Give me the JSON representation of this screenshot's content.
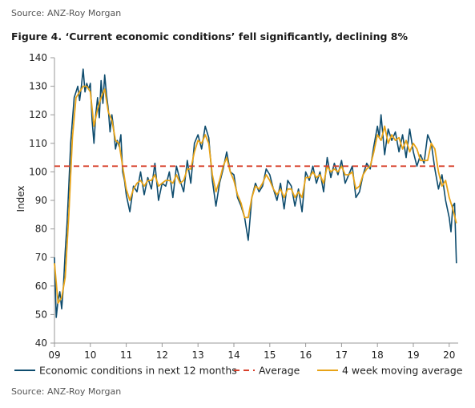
{
  "header": {
    "source_top": "Source: ANZ-Roy Morgan",
    "title": "Figure 4. ‘Current economic conditions’ fell significantly, declining 8%"
  },
  "footer": {
    "source_bottom": "Source: ANZ-Roy Morgan"
  },
  "colors": {
    "series_main": "#0e4c6e",
    "average": "#d8402b",
    "moving_avg": "#e8a317",
    "axis": "#999999"
  },
  "chart_data": {
    "type": "line",
    "title": "",
    "xlabel": "",
    "ylabel": "Index",
    "ylim": [
      40,
      140
    ],
    "xlim": [
      9,
      20.25
    ],
    "y_ticks": [
      40,
      50,
      60,
      70,
      80,
      90,
      100,
      110,
      120,
      130,
      140
    ],
    "x_ticks": [
      9,
      10,
      11,
      12,
      13,
      14,
      15,
      16,
      17,
      18,
      19,
      20
    ],
    "x_tick_labels": [
      "09",
      "10",
      "11",
      "12",
      "13",
      "14",
      "15",
      "16",
      "17",
      "18",
      "19",
      "20"
    ],
    "grid": false,
    "legend_position": "bottom",
    "average": 102,
    "series": [
      {
        "name": "Economic conditions in next 12 months",
        "style": "solid",
        "x": [
          9.0,
          9.05,
          9.1,
          9.15,
          9.2,
          9.25,
          9.3,
          9.35,
          9.4,
          9.45,
          9.5,
          9.55,
          9.6,
          9.65,
          9.7,
          9.75,
          9.8,
          9.85,
          9.9,
          9.95,
          10.0,
          10.05,
          10.1,
          10.15,
          10.2,
          10.25,
          10.3,
          10.35,
          10.4,
          10.45,
          10.5,
          10.55,
          10.6,
          10.65,
          10.7,
          10.75,
          10.8,
          10.85,
          10.9,
          10.95,
          11.0,
          11.1,
          11.2,
          11.3,
          11.4,
          11.5,
          11.6,
          11.7,
          11.8,
          11.9,
          12.0,
          12.1,
          12.2,
          12.3,
          12.4,
          12.5,
          12.6,
          12.7,
          12.8,
          12.9,
          13.0,
          13.1,
          13.2,
          13.3,
          13.4,
          13.5,
          13.6,
          13.7,
          13.8,
          13.9,
          14.0,
          14.1,
          14.2,
          14.3,
          14.4,
          14.5,
          14.6,
          14.7,
          14.8,
          14.9,
          15.0,
          15.1,
          15.2,
          15.3,
          15.4,
          15.5,
          15.6,
          15.7,
          15.8,
          15.9,
          16.0,
          16.1,
          16.2,
          16.3,
          16.4,
          16.5,
          16.6,
          16.7,
          16.8,
          16.9,
          17.0,
          17.1,
          17.2,
          17.3,
          17.4,
          17.5,
          17.6,
          17.7,
          17.8,
          17.9,
          18.0,
          18.05,
          18.1,
          18.2,
          18.3,
          18.4,
          18.5,
          18.6,
          18.7,
          18.8,
          18.9,
          19.0,
          19.1,
          19.2,
          19.3,
          19.4,
          19.5,
          19.6,
          19.7,
          19.8,
          19.9,
          20.0,
          20.05,
          20.1,
          20.15,
          20.2
        ],
        "values": [
          70,
          49,
          55,
          58,
          52,
          60,
          72,
          82,
          95,
          110,
          118,
          126,
          128,
          130,
          125,
          130,
          136,
          128,
          131,
          129,
          131,
          118,
          110,
          120,
          126,
          119,
          132,
          124,
          134,
          127,
          122,
          114,
          120,
          115,
          108,
          111,
          109,
          113,
          100,
          97,
          92,
          86,
          95,
          93,
          100,
          92,
          98,
          94,
          103,
          90,
          96,
          95,
          100,
          91,
          102,
          97,
          93,
          104,
          96,
          110,
          113,
          108,
          116,
          112,
          97,
          88,
          96,
          101,
          107,
          100,
          99,
          91,
          88,
          84,
          76,
          91,
          96,
          93,
          95,
          101,
          99,
          94,
          90,
          96,
          87,
          97,
          95,
          88,
          94,
          86,
          100,
          97,
          102,
          96,
          100,
          93,
          105,
          98,
          103,
          99,
          104,
          96,
          99,
          102,
          91,
          93,
          99,
          103,
          101,
          109,
          116,
          112,
          120,
          106,
          115,
          111,
          114,
          107,
          113,
          105,
          115,
          107,
          102,
          106,
          103,
          113,
          110,
          101,
          94,
          99,
          90,
          84,
          79,
          88,
          89,
          68
        ]
      },
      {
        "name": "Average",
        "style": "dashed",
        "x": [
          9,
          20.2
        ],
        "values": [
          102,
          102
        ]
      },
      {
        "name": "4 week moving average",
        "style": "solid",
        "x": [
          9.0,
          9.1,
          9.2,
          9.3,
          9.4,
          9.5,
          9.6,
          9.7,
          9.8,
          9.9,
          10.0,
          10.1,
          10.2,
          10.3,
          10.4,
          10.5,
          10.6,
          10.7,
          10.8,
          10.9,
          11.0,
          11.1,
          11.2,
          11.3,
          11.4,
          11.5,
          11.6,
          11.7,
          11.8,
          11.9,
          12.0,
          12.1,
          12.2,
          12.3,
          12.4,
          12.5,
          12.6,
          12.7,
          12.8,
          12.9,
          13.0,
          13.1,
          13.2,
          13.3,
          13.4,
          13.5,
          13.6,
          13.7,
          13.8,
          13.9,
          14.0,
          14.1,
          14.2,
          14.3,
          14.4,
          14.5,
          14.6,
          14.7,
          14.8,
          14.9,
          15.0,
          15.1,
          15.2,
          15.3,
          15.4,
          15.5,
          15.6,
          15.7,
          15.8,
          15.9,
          16.0,
          16.1,
          16.2,
          16.3,
          16.4,
          16.5,
          16.6,
          16.7,
          16.8,
          16.9,
          17.0,
          17.1,
          17.2,
          17.3,
          17.4,
          17.5,
          17.6,
          17.7,
          17.8,
          17.9,
          18.0,
          18.1,
          18.2,
          18.3,
          18.4,
          18.5,
          18.6,
          18.7,
          18.8,
          18.9,
          19.0,
          19.1,
          19.2,
          19.3,
          19.4,
          19.5,
          19.6,
          19.7,
          19.8,
          19.9,
          20.0,
          20.1,
          20.2
        ],
        "values": [
          68,
          54,
          56,
          63,
          85,
          112,
          126,
          128,
          130,
          130,
          128,
          116,
          122,
          126,
          129,
          121,
          118,
          111,
          110,
          102,
          94,
          90,
          94,
          96,
          97,
          95,
          97,
          97,
          99,
          95,
          96,
          97,
          97,
          96,
          99,
          96,
          97,
          101,
          101,
          107,
          111,
          110,
          113,
          110,
          99,
          93,
          97,
          102,
          105,
          100,
          97,
          92,
          89,
          84,
          84,
          91,
          95,
          94,
          96,
          99,
          97,
          94,
          92,
          94,
          91,
          94,
          94,
          91,
          93,
          91,
          98,
          98,
          100,
          98,
          99,
          96,
          102,
          100,
          101,
          100,
          102,
          99,
          99,
          100,
          94,
          95,
          99,
          101,
          102,
          107,
          113,
          111,
          116,
          110,
          113,
          111,
          112,
          108,
          111,
          107,
          110,
          108,
          104,
          104,
          104,
          110,
          108,
          100,
          95,
          97,
          91,
          87,
          82
        ]
      }
    ]
  }
}
